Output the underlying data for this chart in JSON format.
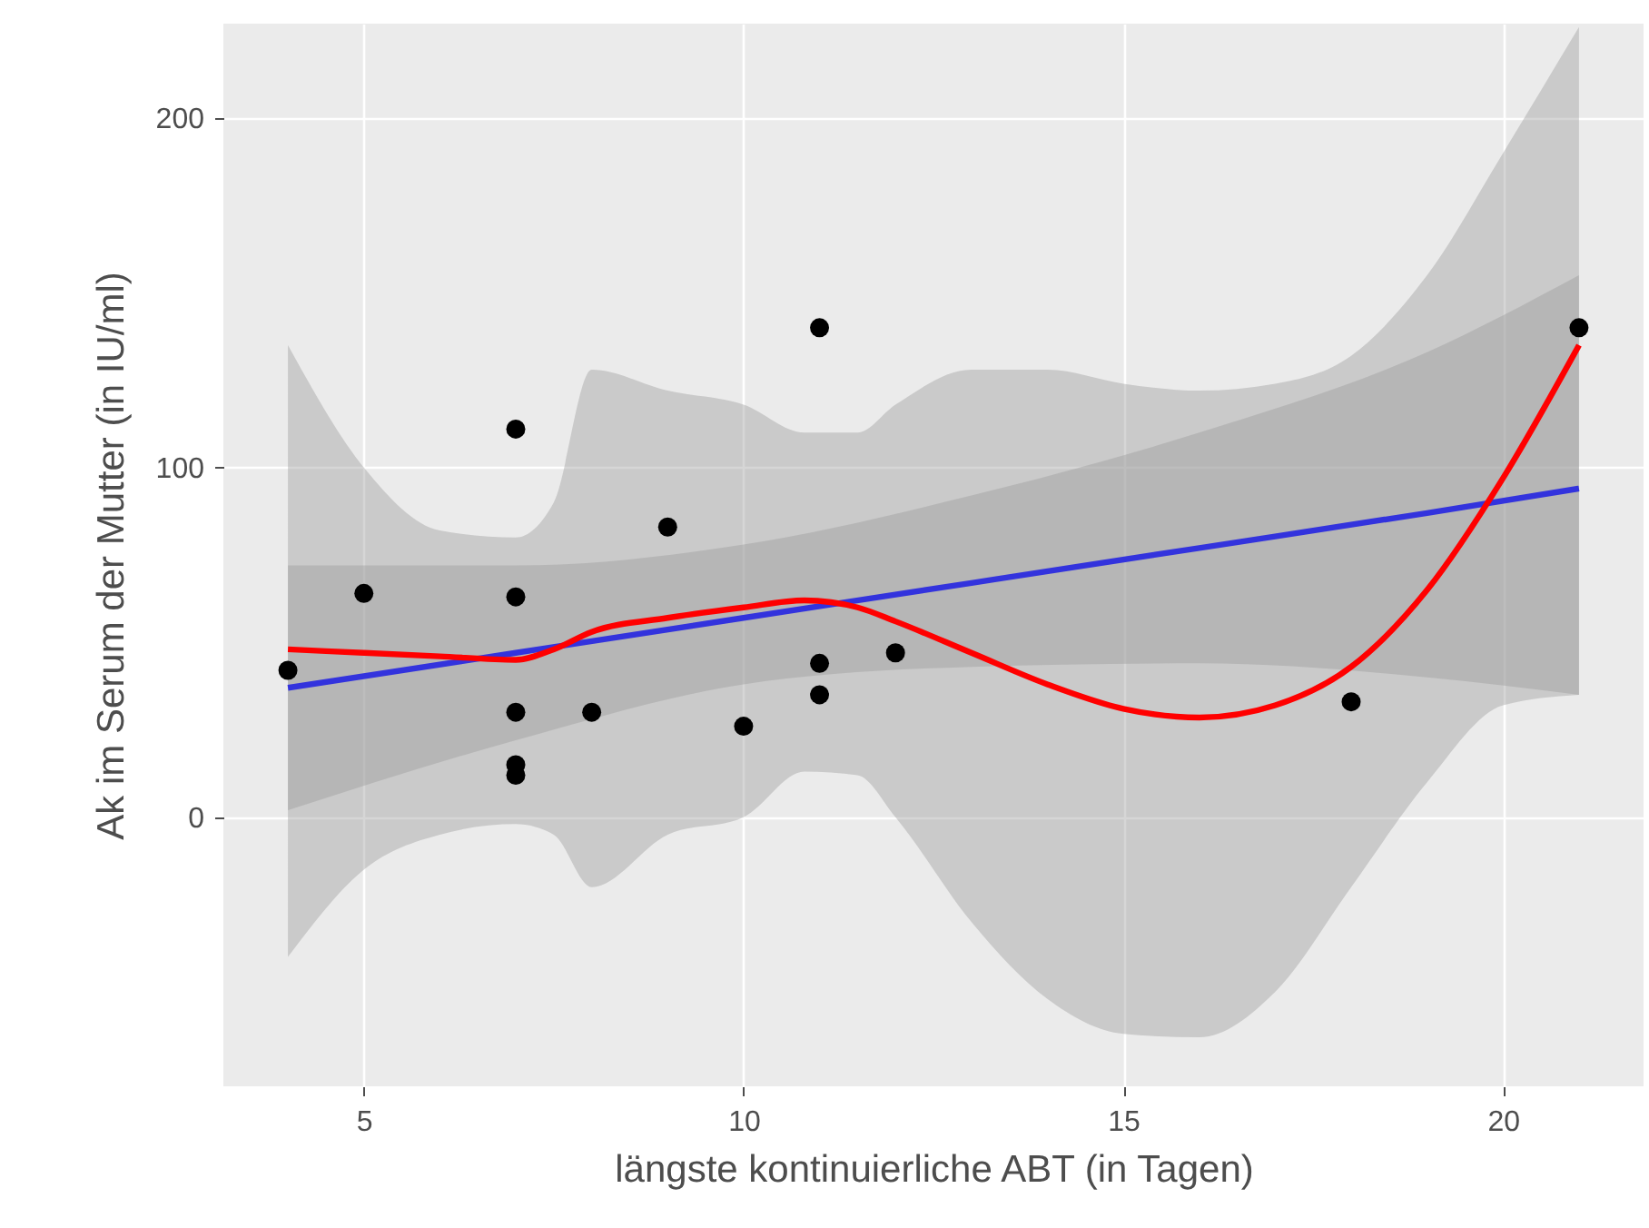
{
  "chart_data": {
    "type": "scatter",
    "xlabel": "längste kontinuierliche ABT (in Tagen)",
    "ylabel": "Ak im Serum der Mutter (in IU/ml)",
    "xlim": [
      3.15,
      21.85
    ],
    "ylim": [
      -77,
      227
    ],
    "xticks": [
      5,
      10,
      15,
      20
    ],
    "yticks": [
      0,
      100,
      200
    ],
    "grid": true,
    "marker": "circle",
    "series": [
      {
        "type": "line",
        "marker": "none",
        "color": "#3333dd",
        "x": [
          4,
          7,
          10,
          13,
          16,
          19,
          21
        ],
        "values": [
          37,
          47,
          57,
          67,
          77,
          87,
          94
        ],
        "lower": [
          2,
          22,
          38,
          43,
          44,
          40,
          35
        ],
        "upper": [
          72,
          72,
          78,
          92,
          110,
          133,
          155
        ]
      },
      {
        "type": "line",
        "marker": "none",
        "color": "#ff0000",
        "x": [
          4,
          5,
          6,
          7,
          7.5,
          8,
          9,
          10,
          10.8,
          11.5,
          12,
          13,
          14,
          15,
          16,
          17,
          18,
          19,
          20,
          21
        ],
        "values": [
          48,
          47,
          46,
          45,
          48,
          53,
          57,
          60,
          62,
          60,
          56,
          47,
          38,
          31,
          28.5,
          32,
          43,
          65,
          97,
          135
        ],
        "lower": [
          -40,
          -15,
          -5,
          -2,
          -5,
          -20,
          -5,
          0,
          13,
          12,
          0,
          -30,
          -52,
          -62,
          -63,
          -50,
          -20,
          10,
          32,
          35
        ],
        "upper": [
          135,
          100,
          82,
          80,
          90,
          128,
          122,
          118,
          110,
          110,
          118,
          128,
          128,
          124,
          122,
          124,
          132,
          155,
          190,
          226
        ]
      },
      {
        "color": "#000000",
        "x": [
          4,
          5,
          7,
          7,
          7,
          7,
          7,
          8,
          9,
          10,
          11,
          11,
          11,
          12,
          18,
          21
        ],
        "values": [
          42,
          64,
          111,
          63,
          30,
          15,
          12,
          30,
          83,
          26,
          140,
          44,
          35,
          47,
          33,
          140
        ]
      }
    ]
  }
}
